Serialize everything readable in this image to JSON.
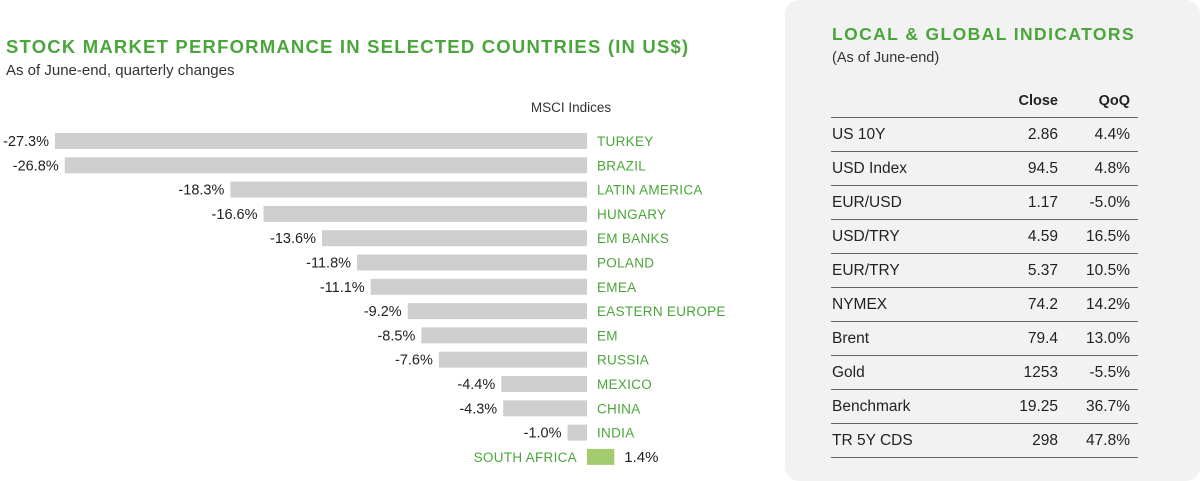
{
  "chart_data": {
    "type": "bar",
    "orientation": "horizontal",
    "title": "STOCK MARKET PERFORMANCE IN SELECTED COUNTRIES (IN US$)",
    "subtitle": "As of June-end, quarterly changes",
    "series_label": "MSCI Indices",
    "categories": [
      "TURKEY",
      "BRAZIL",
      "LATIN AMERICA",
      "HUNGARY",
      "EM BANKS",
      "POLAND",
      "EMEA",
      "EASTERN EUROPE",
      "EM",
      "RUSSIA",
      "MEXICO",
      "CHINA",
      "INDIA",
      "SOUTH AFRICA"
    ],
    "values": [
      -27.3,
      -26.8,
      -18.3,
      -16.6,
      -13.6,
      -11.8,
      -11.1,
      -9.2,
      -8.5,
      -7.6,
      -4.4,
      -4.3,
      -1.0,
      1.4
    ],
    "value_labels": [
      "-27.3%",
      "-26.8%",
      "-18.3%",
      "-16.6%",
      "-13.6%",
      "-11.8%",
      "-11.1%",
      "-9.2%",
      "-8.5%",
      "-7.6%",
      "-4.4%",
      "-4.3%",
      "-1.0%",
      "1.4%"
    ],
    "colors": {
      "negative": "#cfcfcf",
      "positive": "#a3cc6e",
      "label": "#4aa63a"
    }
  },
  "indicators": {
    "title": "LOCAL & GLOBAL INDICATORS",
    "subtitle": "(As of June-end)",
    "columns": [
      "Close",
      "QoQ"
    ],
    "rows": [
      {
        "name": "US 10Y",
        "close": "2.86",
        "qoq": "4.4%"
      },
      {
        "name": "USD Index",
        "close": "94.5",
        "qoq": "4.8%"
      },
      {
        "name": "EUR/USD",
        "close": "1.17",
        "qoq": "-5.0%"
      },
      {
        "name": "USD/TRY",
        "close": "4.59",
        "qoq": "16.5%"
      },
      {
        "name": "EUR/TRY",
        "close": "5.37",
        "qoq": "10.5%"
      },
      {
        "name": "NYMEX",
        "close": "74.2",
        "qoq": "14.2%"
      },
      {
        "name": "Brent",
        "close": "79.4",
        "qoq": "13.0%"
      },
      {
        "name": "Gold",
        "close": "1253",
        "qoq": "-5.5%"
      },
      {
        "name": "Benchmark",
        "close": "19.25",
        "qoq": "36.7%"
      },
      {
        "name": "TR 5Y CDS",
        "close": "298",
        "qoq": "47.8%"
      }
    ]
  }
}
